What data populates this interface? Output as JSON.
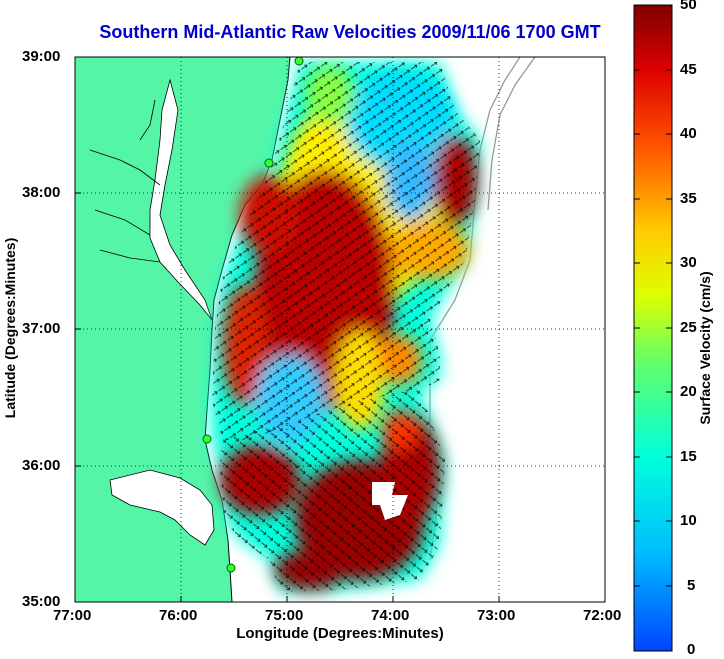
{
  "map": {
    "title": "Southern Mid-Atlantic Raw Velocities 2009/11/06 1700 GMT",
    "xlabel": "Longitude (Degrees:Minutes)",
    "ylabel": "Latitude (Degrees:Minutes)",
    "x_ticks": [
      "77:00",
      "76:00",
      "75:00",
      "74:00",
      "73:00",
      "72:00"
    ],
    "y_ticks": [
      "39:00",
      "38:00",
      "37:00",
      "36:00",
      "35:00"
    ],
    "lon_range": [
      -77,
      -72
    ],
    "lat_range": [
      35,
      39
    ],
    "grid": true,
    "land_color": "#55f5a8",
    "ocean_color": "#ffffff"
  },
  "colorbar": {
    "label": "Surface Velocity (cm/s)",
    "ticks": [
      "50",
      "45",
      "40",
      "35",
      "30",
      "25",
      "20",
      "15",
      "10",
      "5",
      "0"
    ],
    "range": [
      0,
      50
    ],
    "colormap": "jet"
  },
  "chart_data": {
    "type": "heatmap",
    "title": "Southern Mid-Atlantic Raw Velocities 2009/11/06 1700 GMT",
    "xlabel": "Longitude (Degrees:Minutes)",
    "ylabel": "Latitude (Degrees:Minutes)",
    "x_ticks": [
      "77:00",
      "76:00",
      "75:00",
      "74:00",
      "73:00",
      "72:00"
    ],
    "y_ticks": [
      "39:00",
      "38:00",
      "37:00",
      "36:00",
      "35:00"
    ],
    "colorbar_label": "Surface Velocity (cm/s)",
    "colorbar_range": [
      0,
      50
    ],
    "regions": [
      {
        "lon": -74.6,
        "lat": 37.3,
        "speed": 48
      },
      {
        "lon": -75.3,
        "lat": 37.9,
        "speed": 44
      },
      {
        "lon": -73.4,
        "lat": 37.85,
        "speed": 47
      },
      {
        "lon": -74.2,
        "lat": 35.7,
        "speed": 48
      },
      {
        "lon": -75.3,
        "lat": 35.8,
        "speed": 46
      },
      {
        "lon": -75.5,
        "lat": 36.9,
        "speed": 40
      },
      {
        "lon": -74.7,
        "lat": 38.6,
        "speed": 24
      },
      {
        "lon": -73.8,
        "lat": 38.2,
        "speed": 14
      },
      {
        "lon": -75.0,
        "lat": 36.5,
        "speed": 14
      },
      {
        "lon": -74.0,
        "lat": 36.8,
        "speed": 28
      }
    ]
  }
}
